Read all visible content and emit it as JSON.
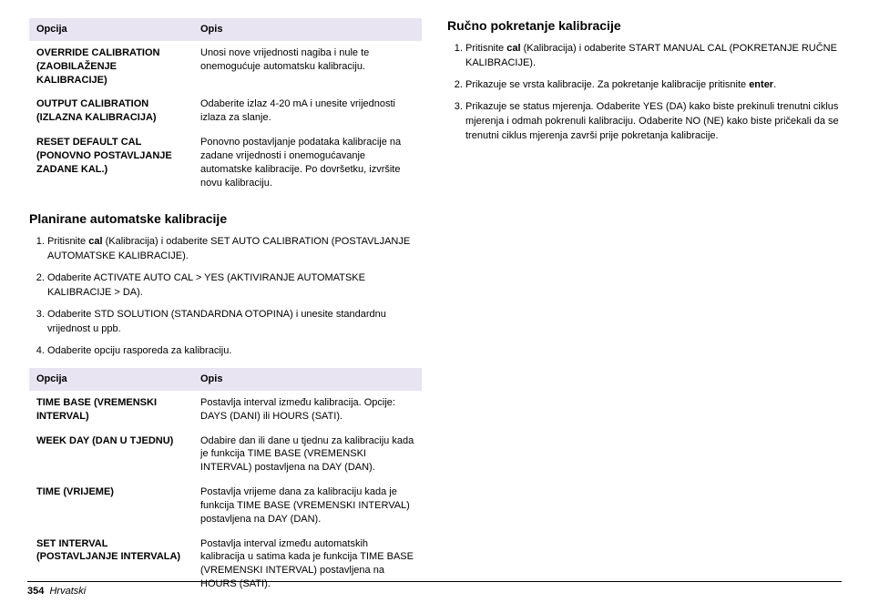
{
  "colors": {
    "header_bg": "#e8e4f2",
    "text": "#000000",
    "page_bg": "#ffffff"
  },
  "typography": {
    "body_fontsize_pt": 8,
    "heading_fontsize_pt": 11,
    "font_family": "Arial"
  },
  "left": {
    "table1": {
      "headers": [
        "Opcija",
        "Opis"
      ],
      "rows": [
        {
          "k": "OVERRIDE CALIBRATION (ZAOBILAŽENJE KALIBRACIJE)",
          "v": "Unosi nove vrijednosti nagiba i nule te onemogućuje automatsku kalibraciju."
        },
        {
          "k": "OUTPUT CALIBRATION (IZLAZNA KALIBRACIJA)",
          "v": "Odaberite izlaz 4-20 mA i unesite vrijednosti izlaza za slanje."
        },
        {
          "k": "RESET DEFAULT CAL (PONOVNO POSTAVLJANJE ZADANE KAL.)",
          "v": "Ponovno postavljanje podataka kalibracije na zadane vrijednosti i onemogućavanje automatske kalibracije. Po dovršetku, izvršite novu kalibraciju."
        }
      ]
    },
    "heading1": "Planirane automatske kalibracije",
    "steps1": [
      "Pritisnite <b>cal</b> (Kalibracija) i odaberite SET AUTO CALIBRATION (POSTAVLJANJE AUTOMATSKE KALIBRACIJE).",
      "Odaberite ACTIVATE AUTO CAL > YES (AKTIVIRANJE AUTOMATSKE KALIBRACIJE > DA).",
      "Odaberite STD SOLUTION (STANDARDNA OTOPINA) i unesite standardnu vrijednost u ppb.",
      "Odaberite opciju rasporeda za kalibraciju."
    ],
    "table2": {
      "headers": [
        "Opcija",
        "Opis"
      ],
      "rows": [
        {
          "k": "TIME BASE (VREMENSKI INTERVAL)",
          "v": "Postavlja interval između kalibracija. Opcije: DAYS (DANI) ili HOURS (SATI)."
        },
        {
          "k": "WEEK DAY (DAN U TJEDNU)",
          "v": "Odabire dan ili dane u tjednu za kalibraciju kada je funkcija TIME BASE (VREMENSKI INTERVAL) postavljena na DAY (DAN)."
        },
        {
          "k": "TIME (VRIJEME)",
          "v": "Postavlja vrijeme dana za kalibraciju kada je funkcija TIME BASE (VREMENSKI INTERVAL) postavljena na DAY (DAN)."
        },
        {
          "k": "SET INTERVAL (POSTAVLJANJE INTERVALA)",
          "v": "Postavlja interval između automatskih kalibracija u satima kada je funkcija TIME BASE (VREMENSKI INTERVAL) postavljena na HOURS (SATI)."
        }
      ]
    }
  },
  "right": {
    "heading": "Ručno pokretanje kalibracije",
    "steps": [
      "Pritisnite <b>cal</b> (Kalibracija) i odaberite START MANUAL CAL (POKRETANJE RUČNE KALIBRACIJE).",
      "Prikazuje se vrsta kalibracije. Za pokretanje kalibracije pritisnite <b>enter</b>.",
      "Prikazuje se status mjerenja. Odaberite YES (DA) kako biste prekinuli trenutni ciklus mjerenja i odmah pokrenuli kalibraciju. Odaberite NO (NE) kako biste pričekali da se trenutni ciklus mjerenja završi prije pokretanja kalibracije."
    ]
  },
  "footer": {
    "page_number": "354",
    "lang": "Hrvatski"
  }
}
